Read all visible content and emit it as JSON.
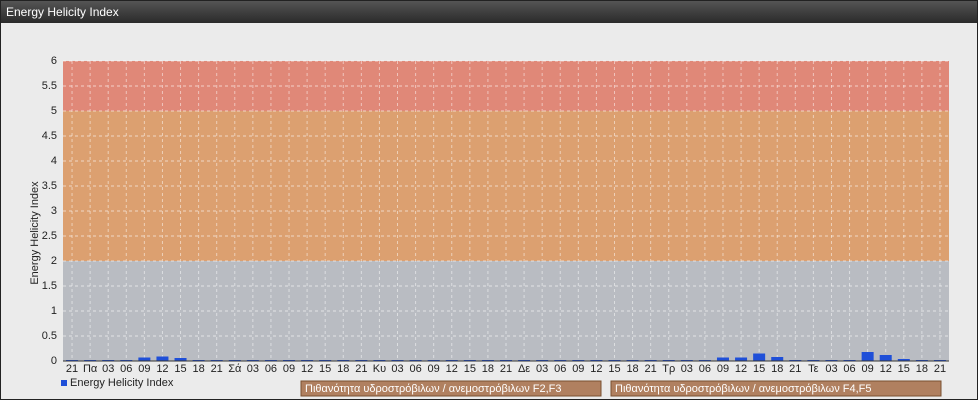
{
  "chart_data": {
    "type": "bar",
    "title": "Energy Helicity Index",
    "ylabel": "Energy Helicity Index",
    "categories": [
      "21",
      "Πα",
      "03",
      "06",
      "09",
      "12",
      "15",
      "18",
      "21",
      "Σά",
      "03",
      "06",
      "09",
      "12",
      "15",
      "18",
      "21",
      "Κυ",
      "03",
      "06",
      "09",
      "12",
      "15",
      "18",
      "21",
      "Δε",
      "03",
      "06",
      "09",
      "12",
      "15",
      "18",
      "21",
      "Τρ",
      "03",
      "06",
      "09",
      "12",
      "15",
      "18",
      "21",
      "Τε",
      "03",
      "06",
      "09",
      "12",
      "15",
      "18",
      "21"
    ],
    "series": [
      {
        "name": "Energy Helicity Index",
        "color": "#1f4fd8",
        "values": [
          0.02,
          0.02,
          0.02,
          0.02,
          0.07,
          0.09,
          0.06,
          0.02,
          0.02,
          0.02,
          0.02,
          0.02,
          0.02,
          0.02,
          0.02,
          0.02,
          0.02,
          0.02,
          0.02,
          0.02,
          0.02,
          0.02,
          0.02,
          0.02,
          0.02,
          0.02,
          0.02,
          0.02,
          0.02,
          0.02,
          0.02,
          0.02,
          0.02,
          0.02,
          0.02,
          0.02,
          0.07,
          0.07,
          0.15,
          0.08,
          0.02,
          0.02,
          0.02,
          0.02,
          0.18,
          0.12,
          0.04,
          0.02,
          0.02
        ]
      }
    ],
    "ylim": [
      0,
      6
    ],
    "yticks": [
      0,
      0.5,
      1,
      1.5,
      2,
      2.5,
      3,
      3.5,
      4,
      4.5,
      5,
      5.5,
      6
    ],
    "grid": true,
    "plot_background": "#b9bcc2",
    "bands": [
      {
        "from": 2,
        "to": 5,
        "color": "#dca070",
        "label": "Πιθανότητα υδροστρόβιλων / ανεμοστρόβιλων F2,F3"
      },
      {
        "from": 5,
        "to": 6,
        "color": "#e08878",
        "label": "Πιθανότητα υδροστρόβιλων / ανεμοστρόβιλων F4,F5"
      }
    ]
  }
}
